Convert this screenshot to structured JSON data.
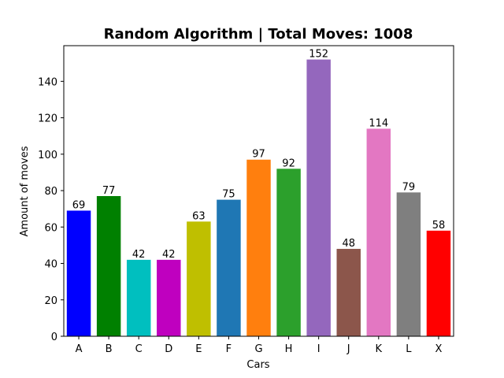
{
  "chart_data": {
    "type": "bar",
    "title": "Random Algorithm | Total Moves: 1008",
    "xlabel": "Cars",
    "ylabel": "Amount of moves",
    "categories": [
      "A",
      "B",
      "C",
      "D",
      "E",
      "F",
      "G",
      "H",
      "I",
      "J",
      "K",
      "L",
      "X"
    ],
    "values": [
      69,
      77,
      42,
      42,
      63,
      75,
      97,
      92,
      152,
      48,
      114,
      79,
      58
    ],
    "colors": [
      "#0000ff",
      "#008000",
      "#00bfbf",
      "#bf00bf",
      "#bfbf00",
      "#1f77b4",
      "#ff7f0e",
      "#2ca02c",
      "#9467bd",
      "#8c564b",
      "#e377c2",
      "#7f7f7f",
      "#ff0000"
    ],
    "ylim": [
      0,
      159.6
    ],
    "yticks": [
      0,
      20,
      40,
      60,
      80,
      100,
      120,
      140
    ],
    "grid": false,
    "legend": "none"
  }
}
